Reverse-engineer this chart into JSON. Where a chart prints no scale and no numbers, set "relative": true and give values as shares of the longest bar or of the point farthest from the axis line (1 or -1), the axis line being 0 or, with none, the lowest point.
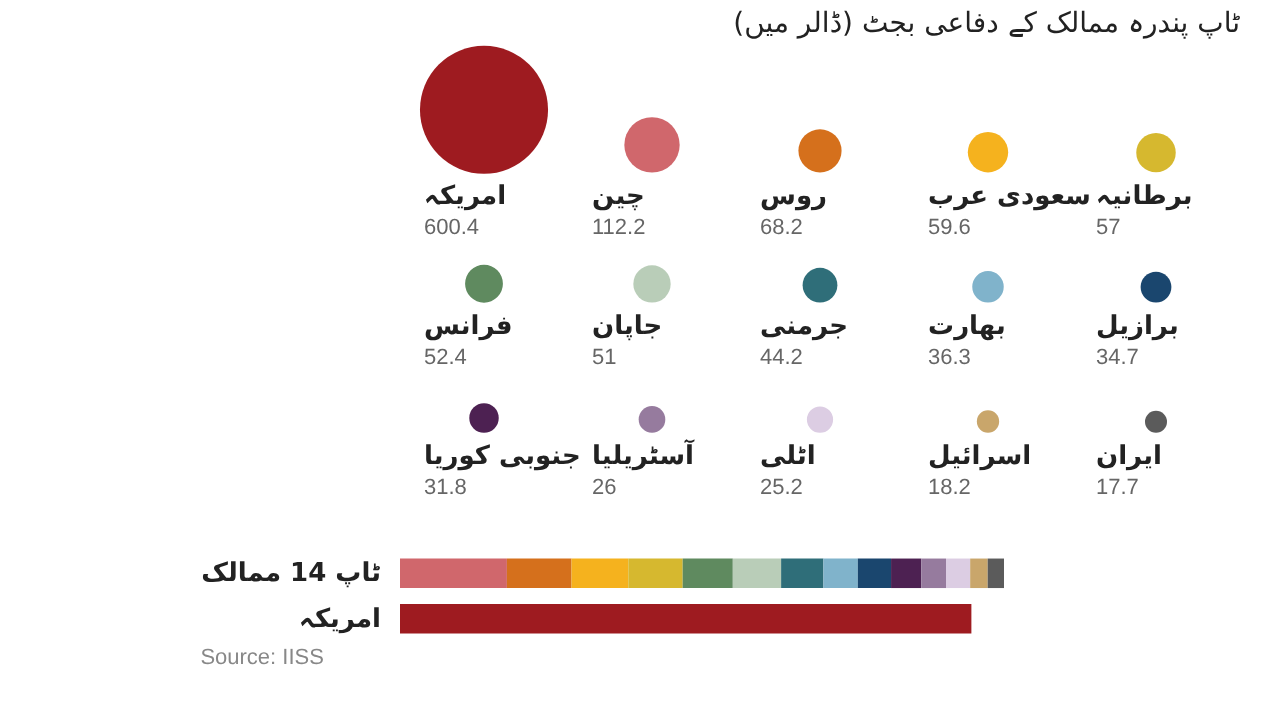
{
  "chart_data": [
    {
      "type": "other",
      "title": "ٹاپ پندرہ ممالک کے دفاعی بجٹ (ڈالر میں)",
      "categories": [
        "امریکہ",
        "چین",
        "روس",
        "سعودی عرب",
        "برطانیہ",
        "فرانس",
        "جاپان",
        "جرمنی",
        "بھارت",
        "برازیل",
        "جنوبی کوریا",
        "آسٹریلیا",
        "اٹلی",
        "اسرائیل",
        "ایران"
      ],
      "values": [
        600.4,
        112.2,
        68.2,
        59.6,
        57,
        52.4,
        51,
        44.2,
        36.3,
        34.7,
        31.8,
        26,
        25.2,
        18.2,
        17.7
      ],
      "colors": [
        "#9e1b20",
        "#d0676c",
        "#d5701c",
        "#f5b21e",
        "#d6b82f",
        "#5f8a5f",
        "#b9cdb8",
        "#2f6e79",
        "#80b3cb",
        "#1a466e",
        "#4d2152",
        "#967b9e",
        "#dccde3",
        "#c9a66b",
        "#5b5b5b"
      ],
      "data_labels": true
    },
    {
      "type": "bar",
      "orientation": "horizontal",
      "stacked": true,
      "relative": true,
      "categories": [
        "ٹاپ 14 ممالک",
        "امریکہ"
      ],
      "series": [
        {
          "color": "#d0676c",
          "values": [
            0.177,
            null
          ]
        },
        {
          "color": "#d5701c",
          "values": [
            0.107,
            null
          ]
        },
        {
          "color": "#f5b21e",
          "values": [
            0.094,
            null
          ]
        },
        {
          "color": "#d6b82f",
          "values": [
            0.09,
            null
          ]
        },
        {
          "color": "#5f8a5f",
          "values": [
            0.083,
            null
          ]
        },
        {
          "color": "#b9cdb8",
          "values": [
            0.08,
            null
          ]
        },
        {
          "color": "#2f6e79",
          "values": [
            0.07,
            null
          ]
        },
        {
          "color": "#80b3cb",
          "values": [
            0.057,
            null
          ]
        },
        {
          "color": "#1a466e",
          "values": [
            0.055,
            null
          ]
        },
        {
          "color": "#4d2152",
          "values": [
            0.05,
            null
          ]
        },
        {
          "color": "#967b9e",
          "values": [
            0.041,
            null
          ]
        },
        {
          "color": "#dccde3",
          "values": [
            0.04,
            null
          ]
        },
        {
          "color": "#c9a66b",
          "values": [
            0.029,
            null
          ]
        },
        {
          "color": "#5b5b5b",
          "values": [
            0.027,
            null
          ]
        },
        {
          "color": "#9e1b20",
          "values": [
            null,
            0.946
          ]
        }
      ],
      "annotations": [
        "Source: IISS"
      ]
    }
  ]
}
